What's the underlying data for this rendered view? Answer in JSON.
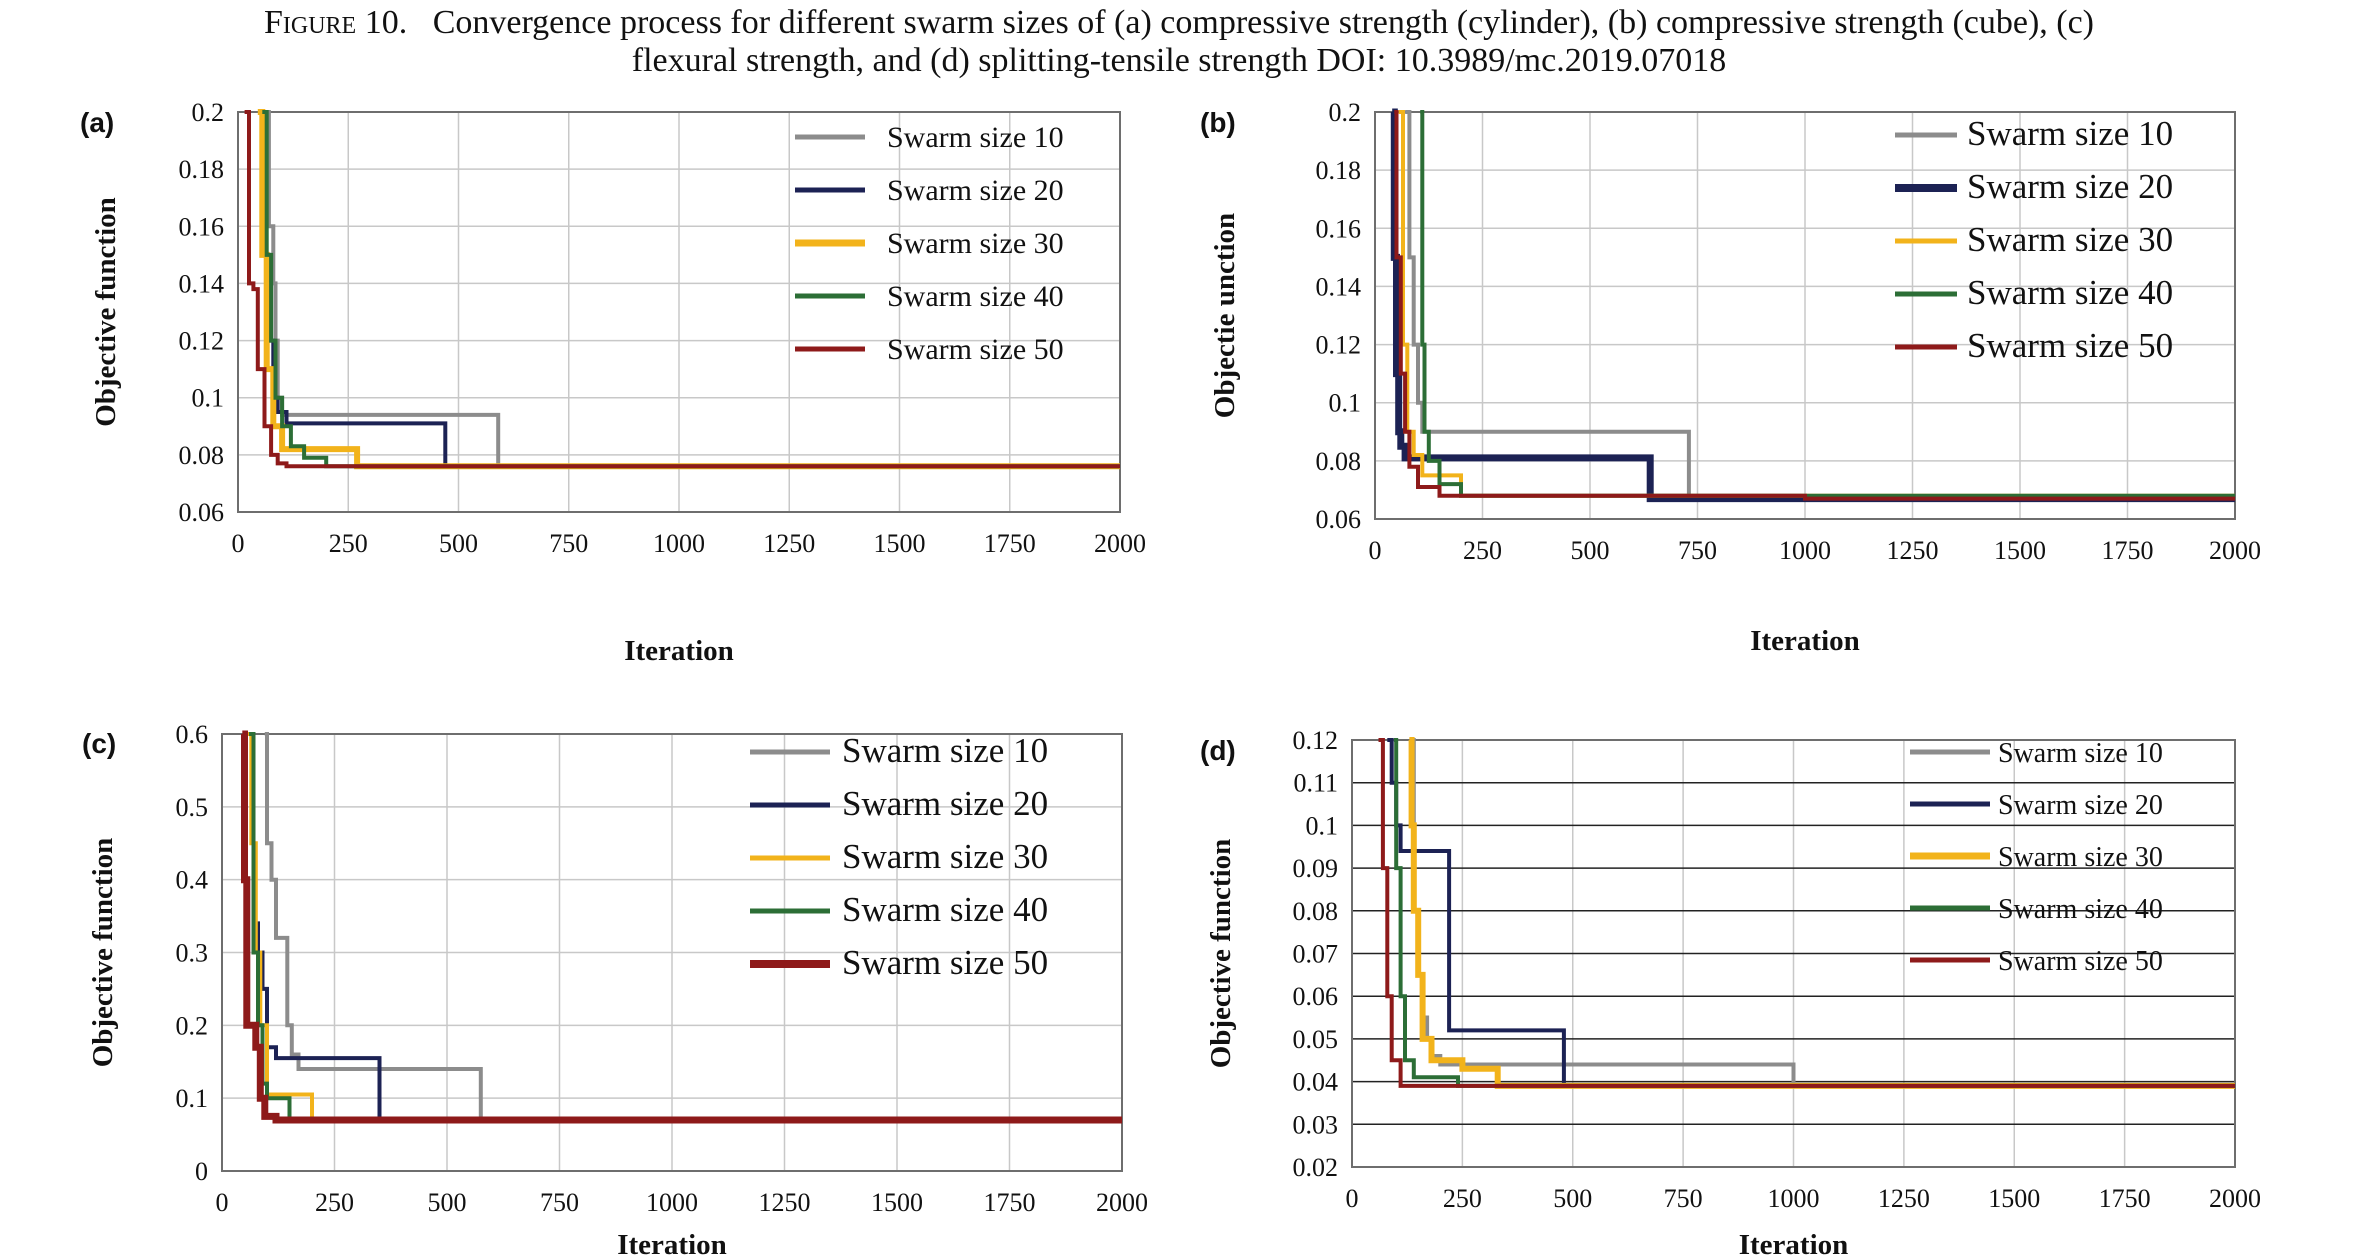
{
  "caption": {
    "figure_label": "Figure 10.",
    "line1": "Convergence process for different swarm sizes of (a) compressive strength (cylinder), (b) compressive strength (cube), (c)",
    "line2": "flexural strength, and (d) splitting-tensile strength DOI: 10.3989/mc.2019.07018"
  },
  "colors": {
    "Swarm size 10": "#8c8c8c",
    "Swarm size 20": "#1c2254",
    "Swarm size 30": "#f2b31b",
    "Swarm size 40": "#2c6e36",
    "Swarm size 50": "#8e1a1a"
  },
  "chart_data": [
    {
      "panel": "(a)",
      "type": "line",
      "xlabel": "Iteration",
      "ylabel": "Objective function",
      "xlim": [
        0,
        2000
      ],
      "ylim": [
        0.06,
        0.2
      ],
      "xticks": [
        0,
        250,
        500,
        750,
        1000,
        1250,
        1500,
        1750,
        2000
      ],
      "yticks": [
        0.06,
        0.08,
        0.1,
        0.12,
        0.14,
        0.16,
        0.18,
        0.2
      ],
      "ytick_labels": [
        "0.06",
        "0.08",
        "0.1",
        "0.12",
        "0.14",
        "0.16",
        "0.18",
        "0.2"
      ],
      "grid": true,
      "legend_position": "top-right",
      "series": [
        {
          "name": "Swarm size 10",
          "x": [
            60,
            70,
            80,
            85,
            90,
            100,
            590,
            590,
            2000
          ],
          "y": [
            0.2,
            0.16,
            0.14,
            0.12,
            0.1,
            0.094,
            0.094,
            0.076,
            0.076
          ]
        },
        {
          "name": "Swarm size 20",
          "x": [
            55,
            60,
            70,
            80,
            90,
            110,
            470,
            470,
            2000
          ],
          "y": [
            0.2,
            0.15,
            0.12,
            0.1,
            0.095,
            0.091,
            0.091,
            0.076,
            0.076
          ]
        },
        {
          "name": "Swarm size 30",
          "x": [
            45,
            55,
            65,
            80,
            100,
            270,
            270,
            2000
          ],
          "y": [
            0.2,
            0.15,
            0.11,
            0.09,
            0.082,
            0.082,
            0.076,
            0.076
          ]
        },
        {
          "name": "Swarm size 40",
          "x": [
            55,
            65,
            75,
            85,
            100,
            120,
            150,
            200,
            2000
          ],
          "y": [
            0.2,
            0.15,
            0.12,
            0.1,
            0.09,
            0.083,
            0.079,
            0.076,
            0.076
          ]
        },
        {
          "name": "Swarm size 50",
          "x": [
            15,
            25,
            35,
            45,
            60,
            75,
            90,
            110,
            2000
          ],
          "y": [
            0.2,
            0.14,
            0.138,
            0.11,
            0.09,
            0.08,
            0.077,
            0.076,
            0.076
          ]
        }
      ]
    },
    {
      "panel": "(b)",
      "type": "line",
      "xlabel": "Iteration",
      "ylabel": "Objectie unction",
      "xlim": [
        0,
        2000
      ],
      "ylim": [
        0.06,
        0.2
      ],
      "xticks": [
        0,
        250,
        500,
        750,
        1000,
        1250,
        1500,
        1750,
        2000
      ],
      "yticks": [
        0.06,
        0.08,
        0.1,
        0.12,
        0.14,
        0.16,
        0.18,
        0.2
      ],
      "ytick_labels": [
        "0.06",
        "0.08",
        "0.1",
        "0.12",
        "0.14",
        "0.16",
        "0.18",
        "0.2"
      ],
      "grid": true,
      "legend_position": "top-right",
      "series": [
        {
          "name": "Swarm size 10",
          "x": [
            70,
            80,
            90,
            100,
            110,
            730,
            730,
            2000
          ],
          "y": [
            0.2,
            0.15,
            0.12,
            0.1,
            0.09,
            0.09,
            0.067,
            0.067
          ]
        },
        {
          "name": "Swarm size 20",
          "x": [
            40,
            45,
            50,
            55,
            60,
            70,
            640,
            640,
            2000
          ],
          "y": [
            0.2,
            0.15,
            0.11,
            0.09,
            0.085,
            0.081,
            0.081,
            0.067,
            0.067
          ]
        },
        {
          "name": "Swarm size 30",
          "x": [
            55,
            65,
            75,
            90,
            110,
            200,
            200,
            2000
          ],
          "y": [
            0.2,
            0.12,
            0.09,
            0.082,
            0.075,
            0.075,
            0.068,
            0.068
          ]
        },
        {
          "name": "Swarm size 40",
          "x": [
            105,
            110,
            115,
            125,
            150,
            200,
            2000
          ],
          "y": [
            0.2,
            0.12,
            0.09,
            0.08,
            0.072,
            0.068,
            0.067
          ]
        },
        {
          "name": "Swarm size 50",
          "x": [
            45,
            50,
            60,
            70,
            80,
            100,
            150,
            1000,
            2000
          ],
          "y": [
            0.2,
            0.15,
            0.11,
            0.09,
            0.078,
            0.071,
            0.068,
            0.067,
            0.067
          ]
        }
      ]
    },
    {
      "panel": "(c)",
      "type": "line",
      "xlabel": "Iteration",
      "ylabel": "Objective function",
      "xlim": [
        0,
        2000
      ],
      "ylim": [
        0,
        0.6
      ],
      "xticks": [
        0,
        250,
        500,
        750,
        1000,
        1250,
        1500,
        1750,
        2000
      ],
      "yticks": [
        0,
        0.1,
        0.2,
        0.3,
        0.4,
        0.5,
        0.6
      ],
      "ytick_labels": [
        "0",
        "0.1",
        "0.2",
        "0.3",
        "0.4",
        "0.5",
        "0.6"
      ],
      "grid": true,
      "legend_position": "top-right",
      "series": [
        {
          "name": "Swarm size 10",
          "x": [
            95,
            100,
            110,
            120,
            130,
            145,
            155,
            170,
            575,
            575,
            2000
          ],
          "y": [
            0.6,
            0.45,
            0.4,
            0.32,
            0.32,
            0.2,
            0.16,
            0.14,
            0.14,
            0.07,
            0.07
          ]
        },
        {
          "name": "Swarm size 20",
          "x": [
            60,
            70,
            80,
            90,
            100,
            120,
            350,
            350,
            2000
          ],
          "y": [
            0.6,
            0.34,
            0.3,
            0.25,
            0.17,
            0.155,
            0.155,
            0.07,
            0.07
          ]
        },
        {
          "name": "Swarm size 30",
          "x": [
            55,
            65,
            75,
            85,
            100,
            200,
            200,
            2000
          ],
          "y": [
            0.6,
            0.45,
            0.3,
            0.2,
            0.105,
            0.105,
            0.07,
            0.07
          ]
        },
        {
          "name": "Swarm size 40",
          "x": [
            60,
            70,
            80,
            90,
            100,
            150,
            150,
            2000
          ],
          "y": [
            0.6,
            0.3,
            0.2,
            0.12,
            0.1,
            0.1,
            0.072,
            0.07
          ]
        },
        {
          "name": "Swarm size 50",
          "x": [
            45,
            50,
            55,
            60,
            75,
            85,
            95,
            120,
            2000
          ],
          "y": [
            0.6,
            0.4,
            0.2,
            0.2,
            0.17,
            0.1,
            0.075,
            0.07,
            0.07
          ]
        }
      ]
    },
    {
      "panel": "(d)",
      "type": "line",
      "xlabel": "Iteration",
      "ylabel": "Objective function",
      "xlim": [
        0,
        2000
      ],
      "ylim": [
        0.02,
        0.12
      ],
      "xticks": [
        0,
        250,
        500,
        750,
        1000,
        1250,
        1500,
        1750,
        2000
      ],
      "yticks": [
        0.02,
        0.03,
        0.04,
        0.05,
        0.06,
        0.07,
        0.08,
        0.09,
        0.1,
        0.11,
        0.12
      ],
      "ytick_labels": [
        "0.02",
        "0.03",
        "0.04",
        "0.05",
        "0.06",
        "0.07",
        "0.08",
        "0.09",
        "0.1",
        "0.11",
        "0.12"
      ],
      "grid": true,
      "legend_position": "top-right",
      "series": [
        {
          "name": "Swarm size 10",
          "x": [
            130,
            140,
            150,
            160,
            170,
            180,
            200,
            1000,
            1000,
            2000
          ],
          "y": [
            0.12,
            0.08,
            0.065,
            0.055,
            0.05,
            0.046,
            0.044,
            0.044,
            0.039,
            0.039
          ]
        },
        {
          "name": "Swarm size 20",
          "x": [
            80,
            90,
            100,
            110,
            120,
            210,
            220,
            480,
            480,
            2000
          ],
          "y": [
            0.12,
            0.11,
            0.1,
            0.094,
            0.094,
            0.094,
            0.052,
            0.052,
            0.039,
            0.039
          ]
        },
        {
          "name": "Swarm size 30",
          "x": [
            130,
            135,
            140,
            150,
            160,
            180,
            250,
            330,
            330,
            2000
          ],
          "y": [
            0.12,
            0.1,
            0.08,
            0.065,
            0.05,
            0.045,
            0.043,
            0.043,
            0.039,
            0.039
          ]
        },
        {
          "name": "Swarm size 40",
          "x": [
            95,
            100,
            110,
            120,
            140,
            240,
            240,
            2000
          ],
          "y": [
            0.12,
            0.09,
            0.06,
            0.045,
            0.041,
            0.041,
            0.039,
            0.039
          ]
        },
        {
          "name": "Swarm size 50",
          "x": [
            60,
            70,
            80,
            90,
            110,
            2000
          ],
          "y": [
            0.12,
            0.09,
            0.06,
            0.045,
            0.039,
            0.039
          ]
        }
      ]
    }
  ]
}
